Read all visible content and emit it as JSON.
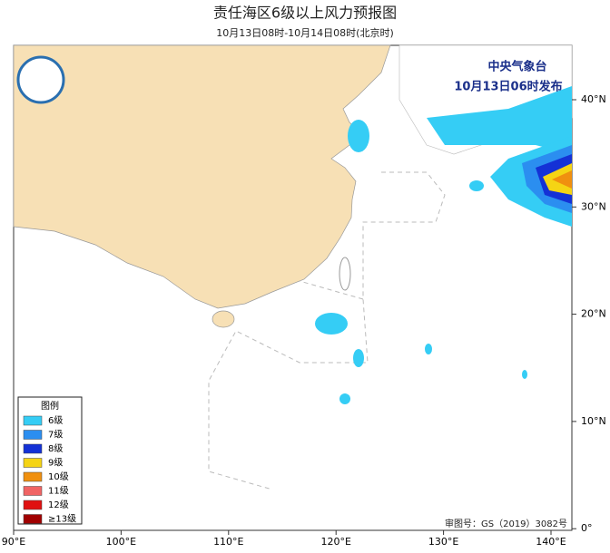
{
  "header": {
    "title": "责任海区6级以上风力预报图",
    "subtitle": "10月13日08时-10月14日08时(北京时)"
  },
  "issuer": {
    "name": "中央气象台",
    "time": "10月13日06时发布"
  },
  "legend": {
    "title": "图例",
    "items": [
      {
        "label": "6级",
        "color": "#35cdf5"
      },
      {
        "label": "7级",
        "color": "#2b8ef0"
      },
      {
        "label": "8级",
        "color": "#1431d6"
      },
      {
        "label": "9级",
        "color": "#f5d414"
      },
      {
        "label": "10级",
        "color": "#f0900f"
      },
      {
        "label": "11级",
        "color": "#f06464"
      },
      {
        "label": "12级",
        "color": "#e01010"
      },
      {
        "label": "≥13级",
        "color": "#a00000"
      }
    ]
  },
  "axes": {
    "x_labels": [
      "90°E",
      "100°E",
      "110°E",
      "120°E",
      "130°E",
      "140°E"
    ],
    "y_labels": [
      "40°N",
      "30°N",
      "20°N",
      "10°N",
      "0°"
    ]
  },
  "footer": {
    "approval": "审图号：GS（2019）3082号"
  }
}
